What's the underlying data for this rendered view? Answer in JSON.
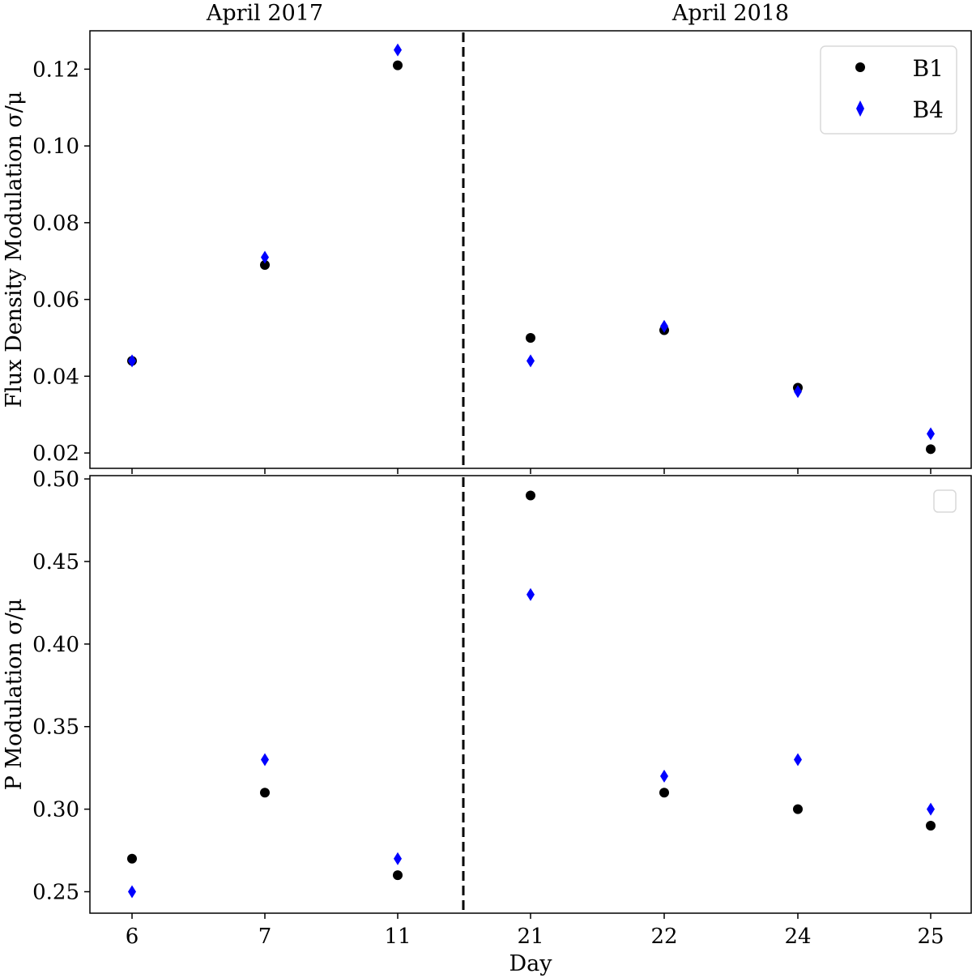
{
  "chart_data": [
    {
      "type": "scatter",
      "panel": "top",
      "title": "",
      "xlabel": "",
      "ylabel": "Flux Density Modulation σ/μ",
      "categories": [
        "6",
        "7",
        "11",
        "21",
        "22",
        "24",
        "25"
      ],
      "group_labels": [
        "April 2017",
        "April 2018"
      ],
      "separator_after_category": "11",
      "ylim": [
        0.016,
        0.13
      ],
      "yticks": [
        0.02,
        0.04,
        0.06,
        0.08,
        0.1,
        0.12
      ],
      "ytick_labels": [
        "0.02",
        "0.04",
        "0.06",
        "0.08",
        "0.10",
        "0.12"
      ],
      "grid": false,
      "legend_position": "upper right",
      "series": [
        {
          "name": "B1",
          "marker": "circle",
          "color": "#000000",
          "values": [
            0.044,
            0.069,
            0.121,
            0.05,
            0.052,
            0.037,
            0.021
          ]
        },
        {
          "name": "B4",
          "marker": "diamond",
          "color": "#0000ff",
          "values": [
            0.044,
            0.071,
            0.125,
            0.044,
            0.053,
            0.036,
            0.025
          ]
        }
      ]
    },
    {
      "type": "scatter",
      "panel": "bottom",
      "title": "",
      "xlabel": "Day",
      "ylabel": "P Modulation σ/μ",
      "categories": [
        "6",
        "7",
        "11",
        "21",
        "22",
        "24",
        "25"
      ],
      "separator_after_category": "11",
      "ylim": [
        0.237,
        0.502
      ],
      "yticks": [
        0.25,
        0.3,
        0.35,
        0.4,
        0.45,
        0.5
      ],
      "ytick_labels": [
        "0.25",
        "0.30",
        "0.35",
        "0.40",
        "0.45",
        "0.50"
      ],
      "grid": false,
      "legend_position": "upper right (empty)",
      "series": [
        {
          "name": "B1",
          "marker": "circle",
          "color": "#000000",
          "values": [
            0.27,
            0.31,
            0.26,
            0.49,
            0.31,
            0.3,
            0.29
          ]
        },
        {
          "name": "B4",
          "marker": "diamond",
          "color": "#0000ff",
          "values": [
            0.25,
            0.33,
            0.27,
            0.43,
            0.32,
            0.33,
            0.3
          ]
        }
      ]
    }
  ],
  "labels": {
    "group_left": "April 2017",
    "group_right": "April 2018",
    "top_ylabel": "Flux Density Modulation σ/μ",
    "bottom_ylabel": "P Modulation σ/μ",
    "xlabel": "Day"
  },
  "legend": {
    "items": [
      {
        "label": "B1",
        "color": "#000000",
        "marker": "circle"
      },
      {
        "label": "B4",
        "color": "#0000ff",
        "marker": "diamond"
      }
    ]
  }
}
